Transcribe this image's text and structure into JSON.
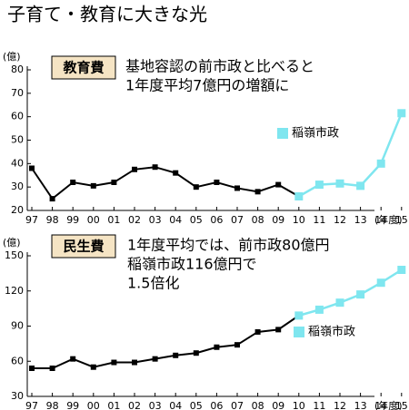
{
  "title": "子育て・教育に大きな光",
  "chart_data": [
    {
      "type": "line",
      "label": "教育費",
      "y_unit": "(億)",
      "x_unit": "(年度)",
      "annotation": [
        "基地容認の前市政と比べると",
        "1年度平均7億円の増額に"
      ],
      "categories": [
        "97",
        "98",
        "99",
        "00",
        "01",
        "02",
        "03",
        "04",
        "05",
        "06",
        "07",
        "08",
        "09",
        "10",
        "11",
        "12",
        "13",
        "14",
        "15"
      ],
      "ylim": [
        20,
        80
      ],
      "yticks": [
        20,
        30,
        40,
        50,
        60,
        70,
        80
      ],
      "series": [
        {
          "color": "#000000",
          "values": [
            38,
            25,
            32,
            30.5,
            32,
            37.5,
            38.5,
            36,
            30,
            32,
            29.5,
            28,
            31,
            26,
            null,
            null,
            null,
            null,
            null
          ]
        },
        {
          "name": "稲嶺市政",
          "color": "#7fe6ef",
          "values": [
            null,
            null,
            null,
            null,
            null,
            null,
            null,
            null,
            null,
            null,
            null,
            null,
            null,
            26,
            31,
            31.5,
            30.5,
            40,
            61.5
          ]
        }
      ]
    },
    {
      "type": "line",
      "label": "民生費",
      "y_unit": "(億)",
      "x_unit": "(年度)",
      "annotation": [
        "1年度平均では、前市政80億円",
        "稲嶺市政116億円で",
        "1.5倍化"
      ],
      "categories": [
        "97",
        "98",
        "99",
        "00",
        "01",
        "02",
        "03",
        "04",
        "05",
        "06",
        "07",
        "08",
        "09",
        "10",
        "11",
        "12",
        "13",
        "14",
        "15"
      ],
      "ylim": [
        30,
        150
      ],
      "yticks": [
        30,
        60,
        90,
        120,
        150
      ],
      "series": [
        {
          "color": "#000000",
          "values": [
            54,
            54,
            62,
            55,
            59,
            59,
            62,
            65,
            67,
            72,
            74,
            85,
            87,
            99,
            null,
            null,
            null,
            null,
            null
          ]
        },
        {
          "name": "稲嶺市政",
          "color": "#7fe6ef",
          "values": [
            null,
            null,
            null,
            null,
            null,
            null,
            null,
            null,
            null,
            null,
            null,
            null,
            null,
            99,
            104,
            110,
            117,
            127,
            138
          ]
        }
      ]
    }
  ]
}
